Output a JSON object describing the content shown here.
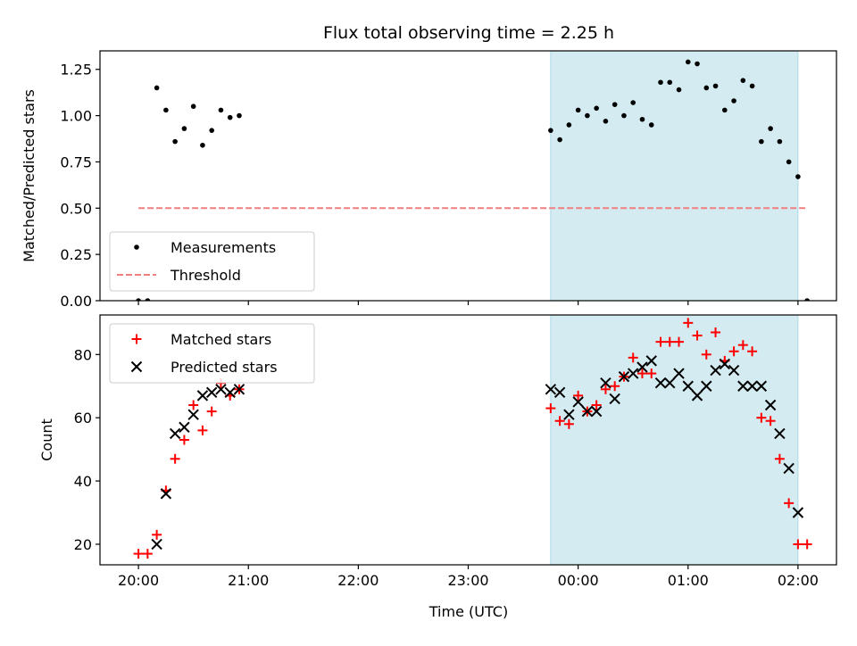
{
  "chart_data": [
    {
      "type": "scatter",
      "title": "Flux total observing time = 2.25 h",
      "xlabel": "",
      "ylabel": "Matched/Predicted stars",
      "ylim": [
        0,
        1.35
      ],
      "xlim_hours": [
        19.65,
        26.35
      ],
      "x_tick_labels": [
        "",
        "",
        "",
        "",
        "",
        ""
      ],
      "y_ticks": [
        "0.00",
        "0.25",
        "0.50",
        "0.75",
        "1.00",
        "1.25"
      ],
      "shaded_interval": [
        "23:45",
        "02:00"
      ],
      "shade_color": "#d3ebf1",
      "legend": {
        "placement": "lower-left",
        "entries": [
          "Measurements",
          "Threshold"
        ]
      },
      "threshold": {
        "name": "Threshold",
        "value": 0.5,
        "x_start": "20:00",
        "x_end": "02:05",
        "color": "#f08080"
      },
      "series": [
        {
          "name": "Measurements",
          "color": "#000000",
          "points": [
            [
              "20:00",
              0.0
            ],
            [
              "20:05",
              0.0
            ],
            [
              "20:10",
              1.15
            ],
            [
              "20:15",
              1.03
            ],
            [
              "20:20",
              0.86
            ],
            [
              "20:25",
              0.93
            ],
            [
              "20:30",
              1.05
            ],
            [
              "20:35",
              0.84
            ],
            [
              "20:40",
              0.92
            ],
            [
              "20:45",
              1.03
            ],
            [
              "20:50",
              0.99
            ],
            [
              "20:55",
              1.0
            ],
            [
              "23:45",
              0.92
            ],
            [
              "23:50",
              0.87
            ],
            [
              "23:55",
              0.95
            ],
            [
              "00:00",
              1.03
            ],
            [
              "00:05",
              1.0
            ],
            [
              "00:10",
              1.04
            ],
            [
              "00:15",
              0.97
            ],
            [
              "00:20",
              1.06
            ],
            [
              "00:25",
              1.0
            ],
            [
              "00:30",
              1.07
            ],
            [
              "00:35",
              0.98
            ],
            [
              "00:40",
              0.95
            ],
            [
              "00:45",
              1.18
            ],
            [
              "00:50",
              1.18
            ],
            [
              "00:55",
              1.14
            ],
            [
              "01:00",
              1.29
            ],
            [
              "01:05",
              1.28
            ],
            [
              "01:10",
              1.15
            ],
            [
              "01:15",
              1.16
            ],
            [
              "01:20",
              1.03
            ],
            [
              "01:25",
              1.08
            ],
            [
              "01:30",
              1.19
            ],
            [
              "01:35",
              1.16
            ],
            [
              "01:40",
              0.86
            ],
            [
              "01:45",
              0.93
            ],
            [
              "01:50",
              0.86
            ],
            [
              "01:55",
              0.75
            ],
            [
              "02:00",
              0.67
            ],
            [
              "02:05",
              0.0
            ]
          ]
        }
      ]
    },
    {
      "type": "scatter",
      "title": "",
      "xlabel": "Time (UTC)",
      "ylabel": "Count",
      "ylim": [
        13.5,
        92.5
      ],
      "xlim_hours": [
        19.65,
        26.35
      ],
      "x_tick_labels": [
        "20:00",
        "21:00",
        "22:00",
        "23:00",
        "00:00",
        "01:00",
        "02:00"
      ],
      "y_ticks": [
        "20",
        "40",
        "60",
        "80"
      ],
      "shaded_interval": [
        "23:45",
        "02:00"
      ],
      "shade_color": "#d3ebf1",
      "legend": {
        "placement": "upper-left",
        "entries": [
          "Matched stars",
          "Predicted stars"
        ]
      },
      "series": [
        {
          "name": "Matched stars",
          "marker": "+",
          "color": "#ff0000",
          "points": [
            [
              "20:00",
              17
            ],
            [
              "20:05",
              17
            ],
            [
              "20:10",
              23
            ],
            [
              "20:15",
              37
            ],
            [
              "20:20",
              47
            ],
            [
              "20:25",
              53
            ],
            [
              "20:30",
              64
            ],
            [
              "20:35",
              56
            ],
            [
              "20:40",
              62
            ],
            [
              "20:45",
              71
            ],
            [
              "20:50",
              67
            ],
            [
              "20:55",
              69
            ],
            [
              "23:45",
              63
            ],
            [
              "23:50",
              59
            ],
            [
              "23:55",
              58
            ],
            [
              "00:00",
              67
            ],
            [
              "00:05",
              62
            ],
            [
              "00:10",
              64
            ],
            [
              "00:15",
              69
            ],
            [
              "00:20",
              70
            ],
            [
              "00:25",
              73
            ],
            [
              "00:30",
              79
            ],
            [
              "00:35",
              74
            ],
            [
              "00:40",
              74
            ],
            [
              "00:45",
              84
            ],
            [
              "00:50",
              84
            ],
            [
              "00:55",
              84
            ],
            [
              "01:00",
              90
            ],
            [
              "01:05",
              86
            ],
            [
              "01:10",
              80
            ],
            [
              "01:15",
              87
            ],
            [
              "01:20",
              78
            ],
            [
              "01:25",
              81
            ],
            [
              "01:30",
              83
            ],
            [
              "01:35",
              81
            ],
            [
              "01:40",
              60
            ],
            [
              "01:45",
              59
            ],
            [
              "01:50",
              47
            ],
            [
              "01:55",
              33
            ],
            [
              "02:00",
              20
            ],
            [
              "02:05",
              20
            ]
          ]
        },
        {
          "name": "Predicted stars",
          "marker": "x",
          "color": "#000000",
          "points": [
            [
              "20:10",
              20
            ],
            [
              "20:15",
              36
            ],
            [
              "20:20",
              55
            ],
            [
              "20:25",
              57
            ],
            [
              "20:30",
              61
            ],
            [
              "20:35",
              67
            ],
            [
              "20:40",
              68
            ],
            [
              "20:45",
              69
            ],
            [
              "20:50",
              68
            ],
            [
              "20:55",
              69
            ],
            [
              "23:45",
              69
            ],
            [
              "23:50",
              68
            ],
            [
              "23:55",
              61
            ],
            [
              "00:00",
              65
            ],
            [
              "00:05",
              62
            ],
            [
              "00:10",
              62
            ],
            [
              "00:15",
              71
            ],
            [
              "00:20",
              66
            ],
            [
              "00:25",
              73
            ],
            [
              "00:30",
              74
            ],
            [
              "00:35",
              76
            ],
            [
              "00:40",
              78
            ],
            [
              "00:45",
              71
            ],
            [
              "00:50",
              71
            ],
            [
              "00:55",
              74
            ],
            [
              "01:00",
              70
            ],
            [
              "01:05",
              67
            ],
            [
              "01:10",
              70
            ],
            [
              "01:15",
              75
            ],
            [
              "01:20",
              77
            ],
            [
              "01:25",
              75
            ],
            [
              "01:30",
              70
            ],
            [
              "01:35",
              70
            ],
            [
              "01:40",
              70
            ],
            [
              "01:45",
              64
            ],
            [
              "01:50",
              55
            ],
            [
              "01:55",
              44
            ],
            [
              "02:00",
              30
            ]
          ]
        }
      ]
    }
  ]
}
